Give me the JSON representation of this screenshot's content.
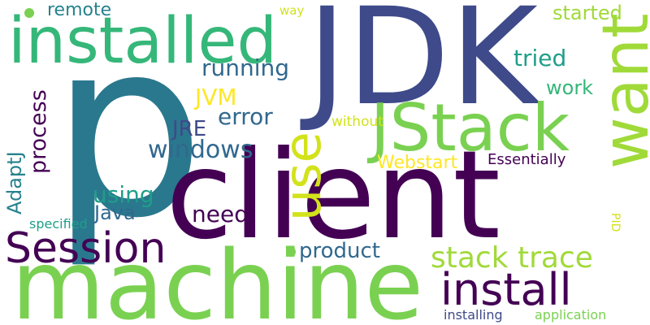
{
  "words": {
    "p": "p",
    "jdk": "JDK",
    "client": "client",
    "machine": "machine",
    "installed": "installed",
    "jstack": "JStack",
    "want": "want",
    "use": "use",
    "session": "Session",
    "install": "install",
    "stack_trace": "stack trace",
    "remote": "remote",
    "way": "way",
    "started": "started",
    "tried": "tried",
    "running": "running",
    "work": "work",
    "jvm": "JVM",
    "process": "process",
    "error": "error",
    "without": "without",
    "jre": "JRE",
    "windows": "windows",
    "webstart": "Webstart",
    "essentially": "Essentially",
    "adaptj": "AdaptJ",
    "using": "using",
    "java": "Java",
    "need": "need",
    "specified": "specified",
    "pid": "PID",
    "product": "product",
    "installing": "installing",
    "application": "application"
  },
  "colors": {
    "dark_purple": "#440154",
    "indigo": "#3e4a89",
    "blue": "#31688e",
    "teal": "#26828e",
    "green_teal": "#1f9e89",
    "green": "#35b779",
    "lime": "#6ece58",
    "yellow_green": "#b5de2b",
    "yellow": "#fde725"
  }
}
